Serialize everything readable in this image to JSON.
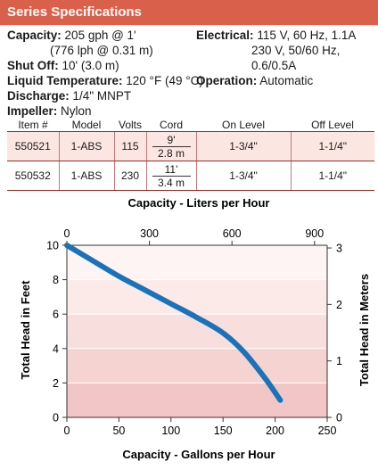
{
  "header": {
    "title": "Series Specifications"
  },
  "specs": {
    "capacity_label": "Capacity:",
    "capacity_value": "205 gph @ 1'",
    "capacity_value2": "(776 lph @ 0.31 m)",
    "shutoff_label": "Shut Off:",
    "shutoff_value": "10' (3.0 m)",
    "liquid_label": "Liquid Temperature:",
    "liquid_value": "120 °F (49 °C)",
    "discharge_label": "Discharge:",
    "discharge_value": "1/4\" MNPT",
    "impeller_label": "Impeller:",
    "impeller_value": "Nylon",
    "electrical_label": "Electrical:",
    "electrical_value": "115 V, 60 Hz, 1.1A",
    "electrical_value2": "230 V, 50/60 Hz,",
    "electrical_value3": "0.6/0.5A",
    "operation_label": "Operation:",
    "operation_value": "Automatic"
  },
  "table": {
    "headers": [
      "Item #",
      "Model",
      "Volts",
      "Cord",
      "On Level",
      "Off Level"
    ],
    "rows": [
      {
        "item": "550521",
        "model": "1-ABS",
        "volts": "115",
        "cord_ft": "9'",
        "cord_m": "2.8 m",
        "on": "1-3/4\"",
        "off": "1-1/4\""
      },
      {
        "item": "550532",
        "model": "1-ABS",
        "volts": "230",
        "cord_ft": "11'",
        "cord_m": "3.4 m",
        "on": "1-3/4\"",
        "off": "1-1/4\""
      }
    ]
  },
  "chart_data": {
    "type": "line",
    "top_title": "Capacity - Liters per Hour",
    "xlabel": "Capacity - Gallons per Hour",
    "ylabel": "Total Head in Feet",
    "ylabel_right": "Total Head in Meters",
    "xlim": [
      0,
      250
    ],
    "ylim": [
      0,
      10
    ],
    "x_ticks": [
      0,
      50,
      100,
      150,
      200,
      250
    ],
    "y_ticks": [
      0,
      2,
      4,
      6,
      8,
      10
    ],
    "top_ticks": [
      0,
      300,
      600,
      900
    ],
    "top_lim": [
      0,
      946
    ],
    "right_ticks": [
      0,
      1,
      2,
      3
    ],
    "right_lim": [
      0,
      3.048
    ],
    "line_color": "#1a73b8",
    "series": [
      {
        "x": [
          0,
          25,
          50,
          75,
          100,
          125,
          150,
          170,
          190,
          205
        ],
        "y": [
          10,
          9.1,
          8.2,
          7.4,
          6.6,
          5.8,
          4.9,
          3.8,
          2.3,
          1.0
        ]
      }
    ]
  }
}
